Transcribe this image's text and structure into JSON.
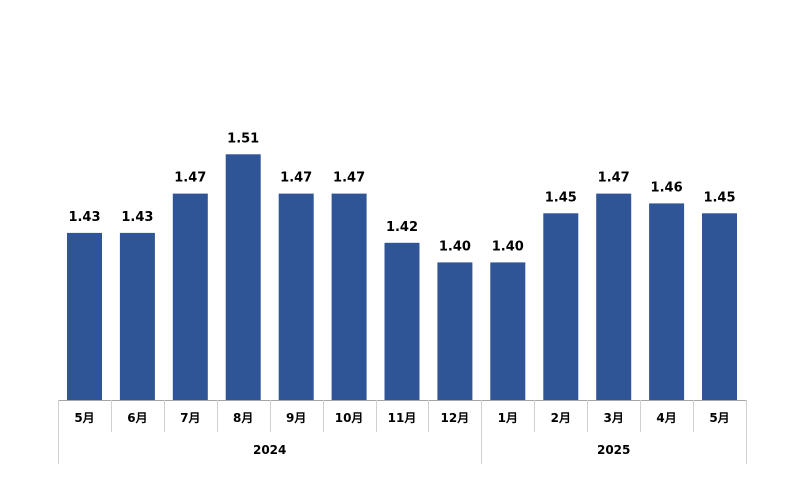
{
  "chart_data": {
    "type": "bar",
    "categories": [
      "5月",
      "6月",
      "7月",
      "8月",
      "9月",
      "10月",
      "11月",
      "12月",
      "1月",
      "2月",
      "3月",
      "4月",
      "5月"
    ],
    "groups": [
      {
        "label": "2024",
        "count": 8
      },
      {
        "label": "2025",
        "count": 5
      }
    ],
    "series": [
      {
        "values": [
          1.43,
          1.43,
          1.47,
          1.51,
          1.47,
          1.47,
          1.42,
          1.4,
          1.4,
          1.45,
          1.47,
          1.46,
          1.45
        ]
      }
    ],
    "data_labels": [
      "1.43",
      "1.43",
      "1.47",
      "1.51",
      "1.47",
      "1.47",
      "1.42",
      "1.40",
      "1.40",
      "1.45",
      "1.47",
      "1.46",
      "1.45"
    ],
    "title": "",
    "xlabel": "",
    "ylabel": "",
    "ylim": [
      1.26,
      1.55
    ],
    "grid": false,
    "legend": "none",
    "bar_color": "#2f5597"
  }
}
